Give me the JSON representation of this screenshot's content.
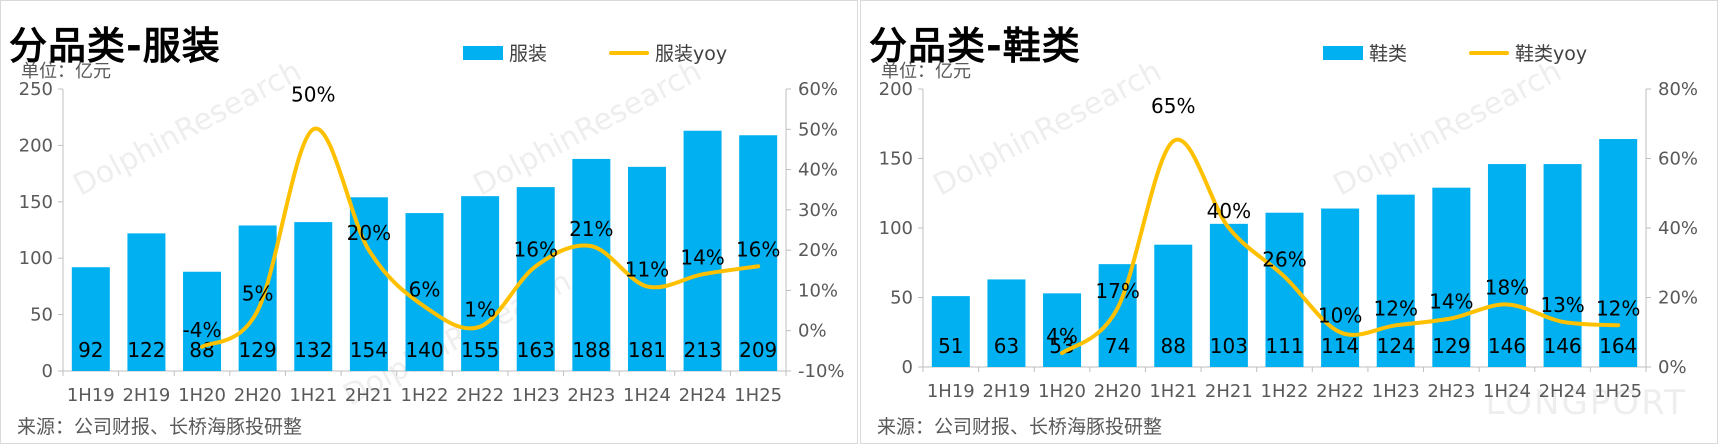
{
  "chart_data": [
    {
      "type": "bar",
      "title": "分品类-服装",
      "unit": "单位：亿元",
      "source": "来源：公司财报、长桥海豚投研整",
      "categories": [
        "1H19",
        "2H19",
        "1H20",
        "2H20",
        "1H21",
        "2H21",
        "1H22",
        "2H22",
        "1H23",
        "2H23",
        "1H24",
        "2H24",
        "1H25"
      ],
      "series": [
        {
          "name": "服装",
          "type": "bar",
          "axis": "left",
          "values": [
            92,
            122,
            88,
            129,
            132,
            154,
            140,
            155,
            163,
            188,
            181,
            213,
            209
          ]
        },
        {
          "name": "服装yoy",
          "type": "line",
          "axis": "right",
          "values": [
            null,
            null,
            -4,
            5,
            50,
            20,
            6,
            1,
            16,
            21,
            11,
            14,
            16
          ],
          "labels": [
            "",
            "",
            "-4%",
            "5%",
            "50%",
            "20%",
            "6%",
            "1%",
            "16%",
            "21%",
            "11%",
            "14%",
            "16%"
          ]
        }
      ],
      "ylim_left": [
        0,
        250
      ],
      "yticks_left": [
        "0",
        "50",
        "100",
        "150",
        "200",
        "250"
      ],
      "ylim_right": [
        -10,
        60
      ],
      "yticks_right": [
        "-10%",
        "0%",
        "10%",
        "20%",
        "30%",
        "40%",
        "50%",
        "60%"
      ],
      "bar_color": "#00b0f0",
      "line_color": "#ffc000",
      "legend": "top-right"
    },
    {
      "type": "bar",
      "title": "分品类-鞋类",
      "unit": "单位：亿元",
      "source": "来源：公司财报、长桥海豚投研整",
      "categories": [
        "1H19",
        "2H19",
        "1H20",
        "2H20",
        "1H21",
        "2H21",
        "1H22",
        "2H22",
        "1H23",
        "2H23",
        "1H24",
        "2H24",
        "1H25"
      ],
      "series": [
        {
          "name": "鞋类",
          "type": "bar",
          "axis": "left",
          "values": [
            51,
            63,
            53,
            74,
            88,
            103,
            111,
            114,
            124,
            129,
            146,
            146,
            164
          ]
        },
        {
          "name": "鞋类yoy",
          "type": "line",
          "axis": "right",
          "values": [
            null,
            null,
            4,
            17,
            65,
            40,
            26,
            10,
            12,
            14,
            18,
            13,
            12
          ],
          "labels": [
            "",
            "",
            "4%",
            "17%",
            "65%",
            "40%",
            "26%",
            "10%",
            "12%",
            "14%",
            "18%",
            "13%",
            "12%"
          ]
        }
      ],
      "ylim_left": [
        0,
        200
      ],
      "yticks_left": [
        "0",
        "50",
        "100",
        "150",
        "200"
      ],
      "ylim_right": [
        0,
        80
      ],
      "yticks_right": [
        "0%",
        "20%",
        "40%",
        "60%",
        "80%"
      ],
      "bar_color": "#00b0f0",
      "line_color": "#ffc000",
      "legend": "top-right"
    }
  ],
  "watermark": {
    "text": "DolphinResearch",
    "brand": "LONGPORT"
  }
}
